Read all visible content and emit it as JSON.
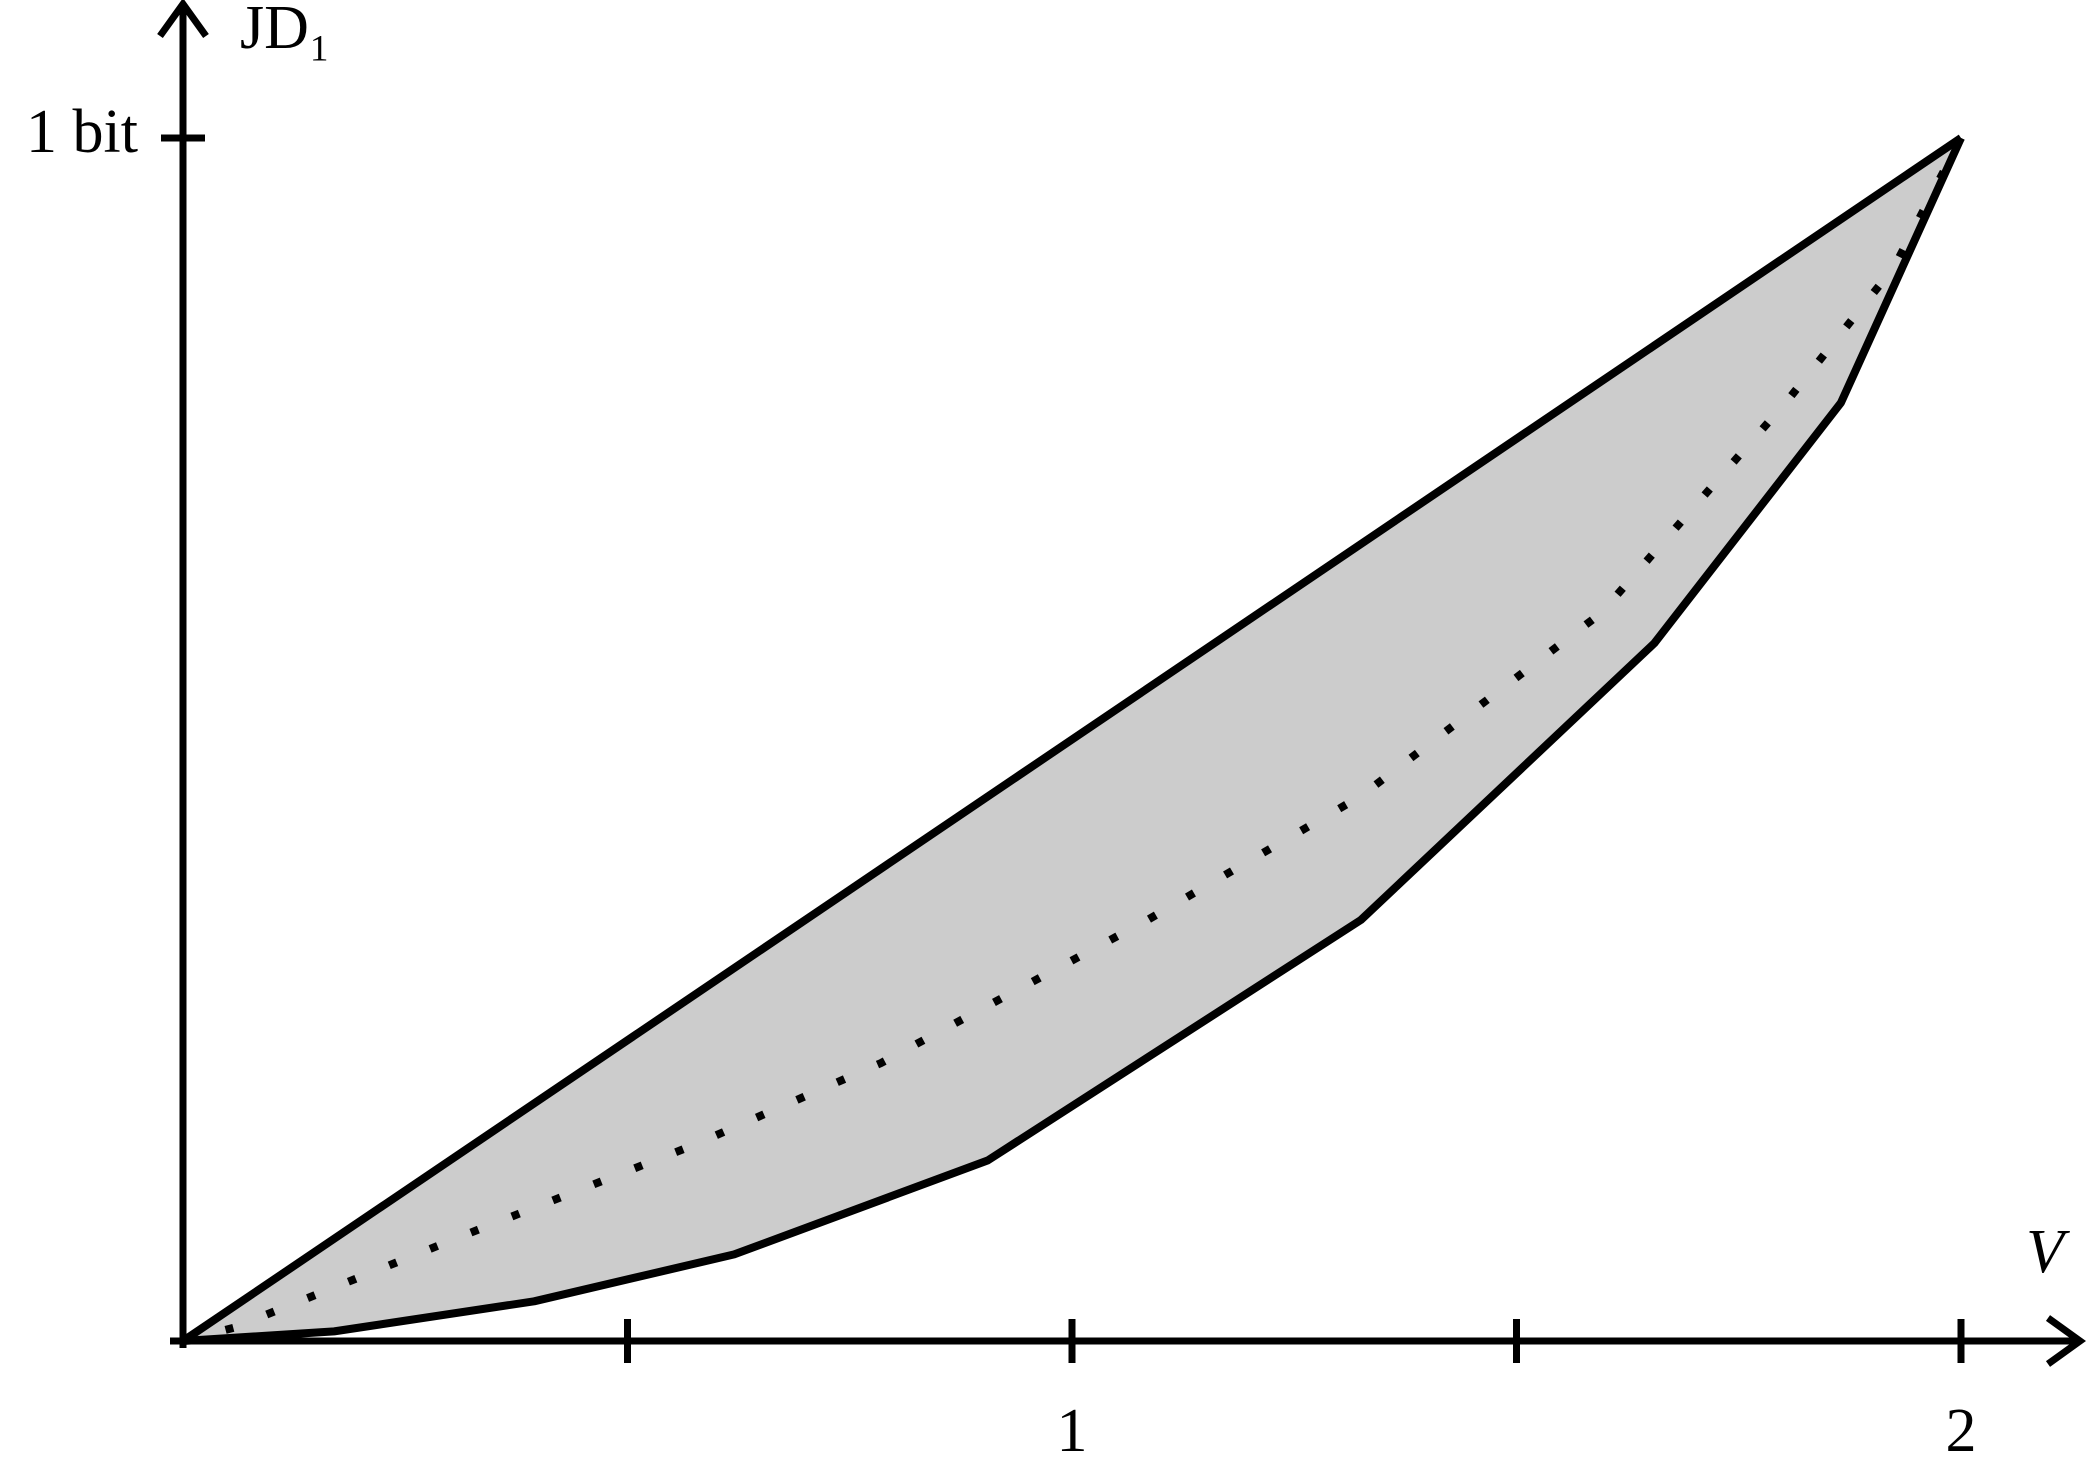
{
  "chart_data": {
    "type": "line",
    "x_label": "V",
    "y_label": "JD₁",
    "xlim": [
      0,
      2.13
    ],
    "ylim": [
      0,
      1.11
    ],
    "xticks": [
      {
        "value": 0.5,
        "label": null
      },
      1,
      {
        "value": 1.5,
        "label": null
      },
      2
    ],
    "yticks": [
      {
        "value": 1,
        "label": "1 bit"
      }
    ],
    "fill_color": "#cccccc",
    "series": [
      {
        "color": "#000000",
        "style": "solid",
        "x": [
          0,
          2
        ],
        "values": [
          0,
          1
        ]
      },
      {
        "color": "#000000",
        "style": "dotted",
        "x": [
          0,
          0.057,
          0.32,
          0.575,
          0.785,
          1.085,
          1.325,
          1.595,
          1.805,
          1.925,
          2
        ],
        "values": [
          0,
          0.011,
          0.089,
          0.163,
          0.231,
          0.35,
          0.453,
          0.605,
          0.782,
          0.893,
          1
        ]
      },
      {
        "color": "#000000",
        "style": "solid",
        "x": [
          0,
          0.17,
          0.395,
          0.62,
          0.905,
          1.325,
          1.655,
          1.865,
          2
        ],
        "values": [
          0,
          0.008,
          0.033,
          0.072,
          0.15,
          0.35,
          0.58,
          0.78,
          1
        ]
      }
    ]
  }
}
